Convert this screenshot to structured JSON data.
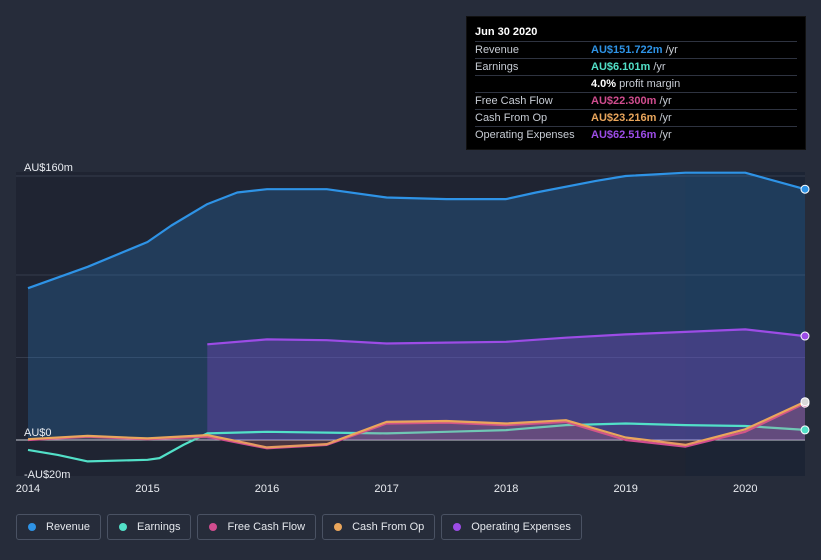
{
  "chart_data": {
    "type": "area",
    "title": "",
    "xlabel": "",
    "ylabel": "",
    "ylim": [
      -20,
      160
    ],
    "xlim": [
      2013.9,
      2020.5
    ],
    "y_tick_labels": [
      {
        "value": 160,
        "label": "AU$160m"
      },
      {
        "value": 0,
        "label": "AU$0"
      },
      {
        "value": -20,
        "label": "-AU$20m"
      }
    ],
    "x_ticks": [
      2014,
      2015,
      2016,
      2017,
      2018,
      2019,
      2020
    ],
    "x_tick_labels": [
      "2014",
      "2015",
      "2016",
      "2017",
      "2018",
      "2019",
      "2020"
    ],
    "highlight_from": 2019.5,
    "series": [
      {
        "name": "Revenue",
        "color": "#2e93e6",
        "fill": true,
        "x": [
          2014.0,
          2014.5,
          2015.0,
          2015.2,
          2015.5,
          2015.75,
          2016.0,
          2016.5,
          2017.0,
          2017.5,
          2018.0,
          2018.25,
          2018.75,
          2019.0,
          2019.5,
          2020.0,
          2020.5
        ],
        "y": [
          92,
          105,
          120,
          130,
          143,
          150,
          152,
          152,
          147,
          146,
          146,
          150,
          157,
          160,
          162,
          162,
          152
        ]
      },
      {
        "name": "Operating Expenses",
        "color": "#9c4ce6",
        "fill": true,
        "x": [
          2015.5,
          2016.0,
          2016.5,
          2017.0,
          2017.5,
          2018.0,
          2018.5,
          2019.0,
          2019.5,
          2020.0,
          2020.5
        ],
        "y": [
          58,
          61,
          60.5,
          58.5,
          59,
          59.5,
          62,
          64,
          65.5,
          67,
          63
        ]
      },
      {
        "name": "Earnings",
        "color": "#52e0c8",
        "fill": false,
        "x": [
          2014.0,
          2014.25,
          2014.5,
          2015.0,
          2015.1,
          2015.3,
          2015.5,
          2016.0,
          2016.5,
          2017.0,
          2017.5,
          2018.0,
          2018.5,
          2019.0,
          2019.5,
          2020.0,
          2020.5
        ],
        "y": [
          -6,
          -9,
          -13,
          -12,
          -11,
          -3,
          4,
          5,
          4.5,
          4,
          5,
          6,
          9,
          10,
          9,
          8.5,
          6.1
        ]
      },
      {
        "name": "Free Cash Flow",
        "color": "#d14d8f",
        "fill": false,
        "x": [
          2014.0,
          2014.5,
          2015.0,
          2015.5,
          2016.0,
          2016.5,
          2017.0,
          2017.5,
          2018.0,
          2018.5,
          2019.0,
          2019.5,
          2020.0,
          2020.5
        ],
        "y": [
          0,
          2,
          0.5,
          2,
          -5,
          -3,
          10,
          10.5,
          9,
          11,
          0,
          -4,
          5,
          22.3
        ]
      },
      {
        "name": "Cash From Op",
        "color": "#eaa65c",
        "fill": false,
        "x": [
          2014.0,
          2014.5,
          2015.0,
          2015.5,
          2016.0,
          2016.5,
          2017.0,
          2017.5,
          2018.0,
          2018.5,
          2019.0,
          2019.5,
          2020.0,
          2020.5
        ],
        "y": [
          0.5,
          2.5,
          1,
          3,
          -4.5,
          -2.5,
          11,
          11.5,
          10,
          12,
          1.5,
          -3,
          6.5,
          23.2
        ]
      }
    ]
  },
  "tooltip": {
    "date": "Jun 30 2020",
    "rows": [
      {
        "label": "Revenue",
        "value": "AU$151.722m",
        "unit": "/yr",
        "color": "#2e93e6"
      },
      {
        "label": "Earnings",
        "value": "AU$6.101m",
        "unit": "/yr",
        "color": "#52e0c8"
      },
      {
        "label": "",
        "value": "4.0%",
        "unit": "profit margin",
        "color": "#ffffff"
      },
      {
        "label": "Free Cash Flow",
        "value": "AU$22.300m",
        "unit": "/yr",
        "color": "#d14d8f"
      },
      {
        "label": "Cash From Op",
        "value": "AU$23.216m",
        "unit": "/yr",
        "color": "#eaa65c"
      },
      {
        "label": "Operating Expenses",
        "value": "AU$62.516m",
        "unit": "/yr",
        "color": "#9c4ce6"
      }
    ]
  },
  "legend": [
    {
      "label": "Revenue",
      "color": "#2e93e6"
    },
    {
      "label": "Earnings",
      "color": "#52e0c8"
    },
    {
      "label": "Free Cash Flow",
      "color": "#d14d8f"
    },
    {
      "label": "Cash From Op",
      "color": "#eaa65c"
    },
    {
      "label": "Operating Expenses",
      "color": "#9c4ce6"
    }
  ]
}
